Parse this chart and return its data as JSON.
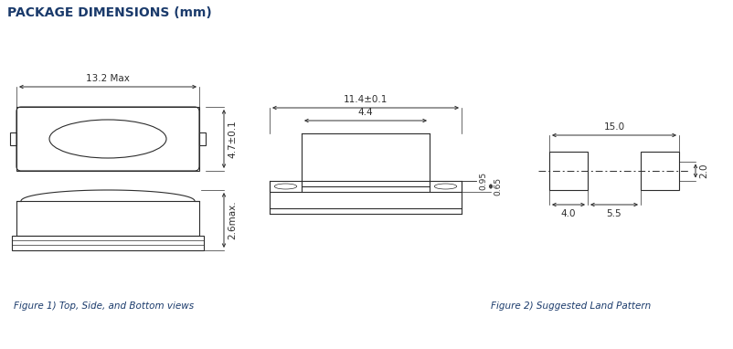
{
  "title": "PACKAGE DIMENSIONS (mm)",
  "title_color": "#1a3a6b",
  "title_fontsize": 10,
  "fig1_caption": "Figure 1) Top, Side, and Bottom views",
  "fig2_caption": "Figure 2) Suggested Land Pattern",
  "caption_color": "#1a3a6b",
  "caption_fontsize": 7.5,
  "line_color": "#2d2d2d",
  "background": "#ffffff",
  "line_width": 0.8
}
